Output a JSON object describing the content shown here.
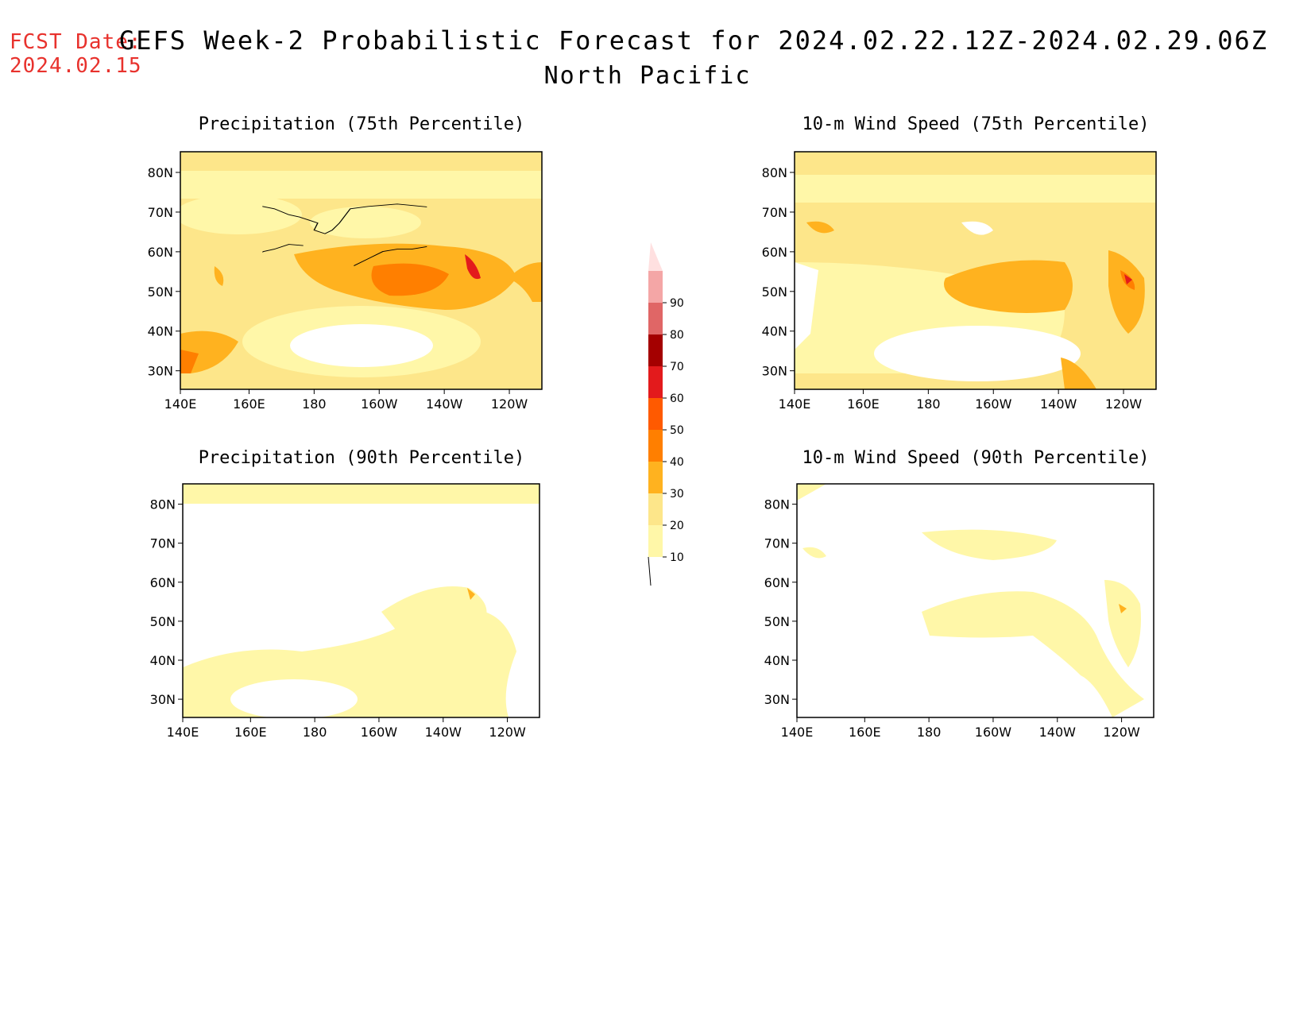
{
  "header": {
    "fcst_label": "FCST Date:",
    "fcst_date": "2024.02.15",
    "title": "GEFS Week-2 Probabilistic Forecast for 2024.02.22.12Z-2024.02.29.06Z",
    "region": "North Pacific"
  },
  "axes": {
    "lon_labels": [
      "140E",
      "160E",
      "180",
      "160W",
      "140W",
      "120W"
    ],
    "lat_labels": [
      "80N",
      "70N",
      "60N",
      "50N",
      "40N",
      "30N"
    ]
  },
  "panels": [
    {
      "id": "precip75",
      "title": "Precipitation (75th Percentile)"
    },
    {
      "id": "wind75",
      "title": "10-m Wind Speed (75th Percentile)"
    },
    {
      "id": "precip90",
      "title": "Precipitation (90th Percentile)"
    },
    {
      "id": "wind90",
      "title": "10-m Wind Speed (90th Percentile)"
    }
  ],
  "colorbar": {
    "levels": [
      "10",
      "20",
      "30",
      "40",
      "50",
      "60",
      "70",
      "80",
      "90"
    ],
    "colors": [
      "#fff7a8",
      "#fde68a",
      "#ffb21f",
      "#ff7f00",
      "#ff5a00",
      "#e31a1c",
      "#a40000",
      "#e06666",
      "#f4a6a6",
      "#ffe0e0"
    ]
  }
}
